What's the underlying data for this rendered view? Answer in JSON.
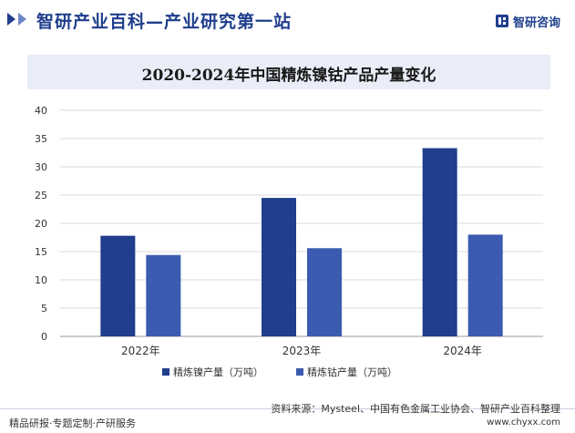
{
  "header": {
    "title": "智研产业百科—产业研究第一站",
    "brand": "智研咨询"
  },
  "footer": {
    "slogan": "精品研报·专题定制·产研服务",
    "source": "资料来源：Mysteel、中国有色金属工业协会、智研产业百科整理",
    "url": "www.chyxx.com"
  },
  "chart_data": {
    "type": "bar",
    "title": "2020-2024年中国精炼镍钴产品产量变化",
    "categories": [
      "2022年",
      "2023年",
      "2024年"
    ],
    "series": [
      {
        "name": "精炼镍产量（万吨）",
        "values": [
          17.8,
          24.5,
          33.3
        ],
        "color": "#1f3e8c"
      },
      {
        "name": "精炼钴产量（万吨）",
        "values": [
          14.4,
          15.6,
          18.0
        ],
        "color": "#3a5bb0"
      }
    ],
    "yticks": [
      "0",
      "5",
      "10",
      "15",
      "20",
      "25",
      "30",
      "35",
      "40"
    ],
    "ylim": [
      0,
      40
    ],
    "grid": true,
    "legend": "bottom-center"
  }
}
